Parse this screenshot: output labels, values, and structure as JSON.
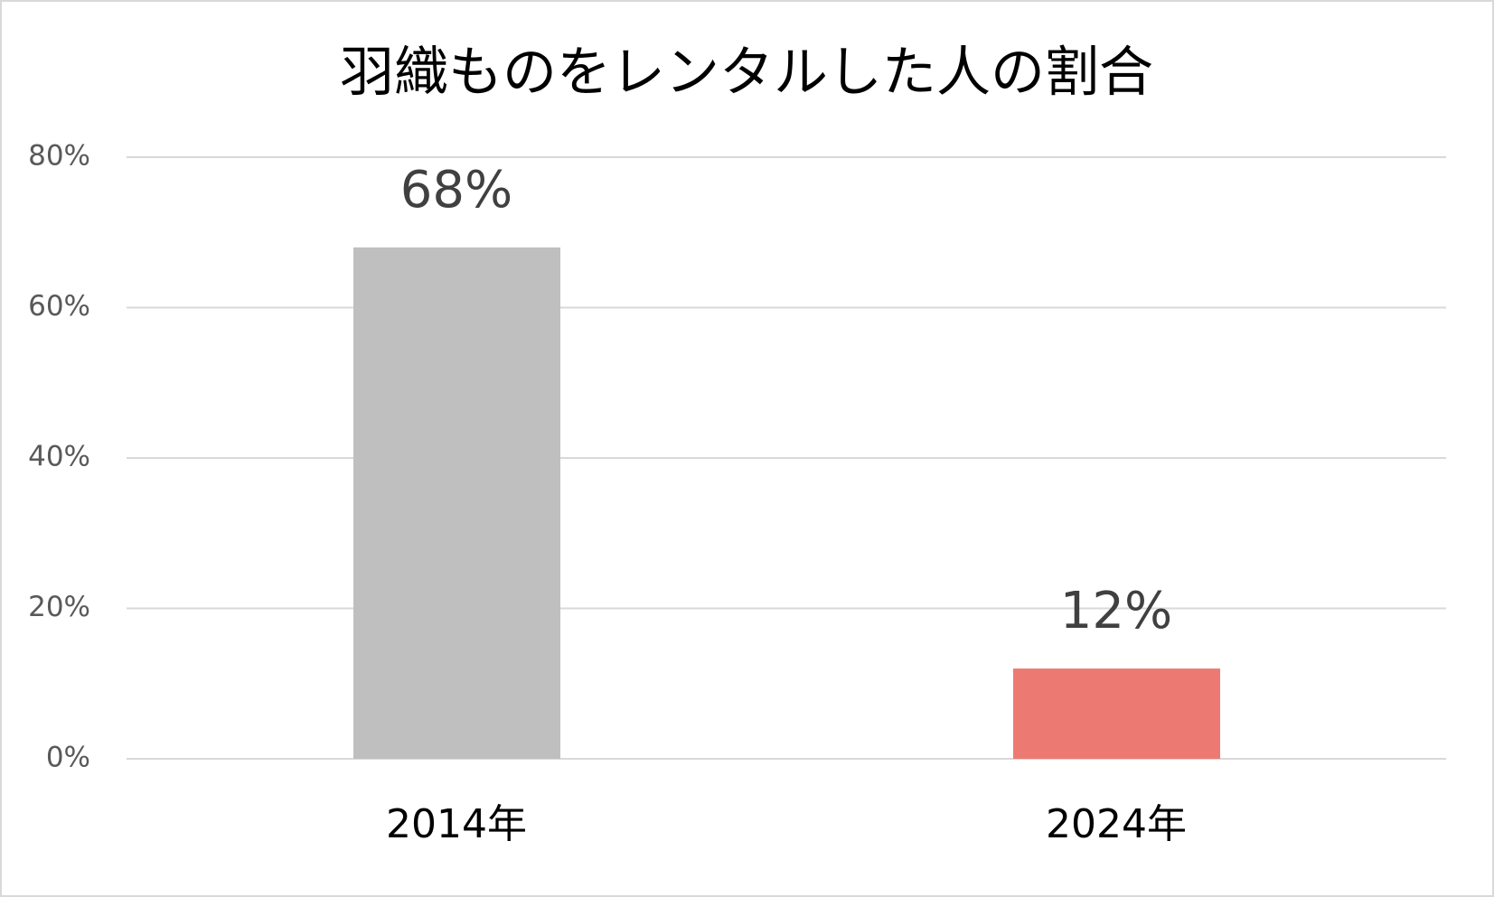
{
  "chart_data": {
    "type": "bar",
    "title": "羽織ものをレンタルした人の割合",
    "categories": [
      "2014年",
      "2024年"
    ],
    "values": [
      68,
      12
    ],
    "value_labels": [
      "68%",
      "12%"
    ],
    "colors": [
      "#bfbfbf",
      "#ec7a72"
    ],
    "ylim": [
      0,
      80
    ],
    "yticks": [
      {
        "value": 0,
        "label": "0%"
      },
      {
        "value": 20,
        "label": "20%"
      },
      {
        "value": 40,
        "label": "40%"
      },
      {
        "value": 60,
        "label": "60%"
      },
      {
        "value": 80,
        "label": "80%"
      }
    ],
    "grid": true
  }
}
